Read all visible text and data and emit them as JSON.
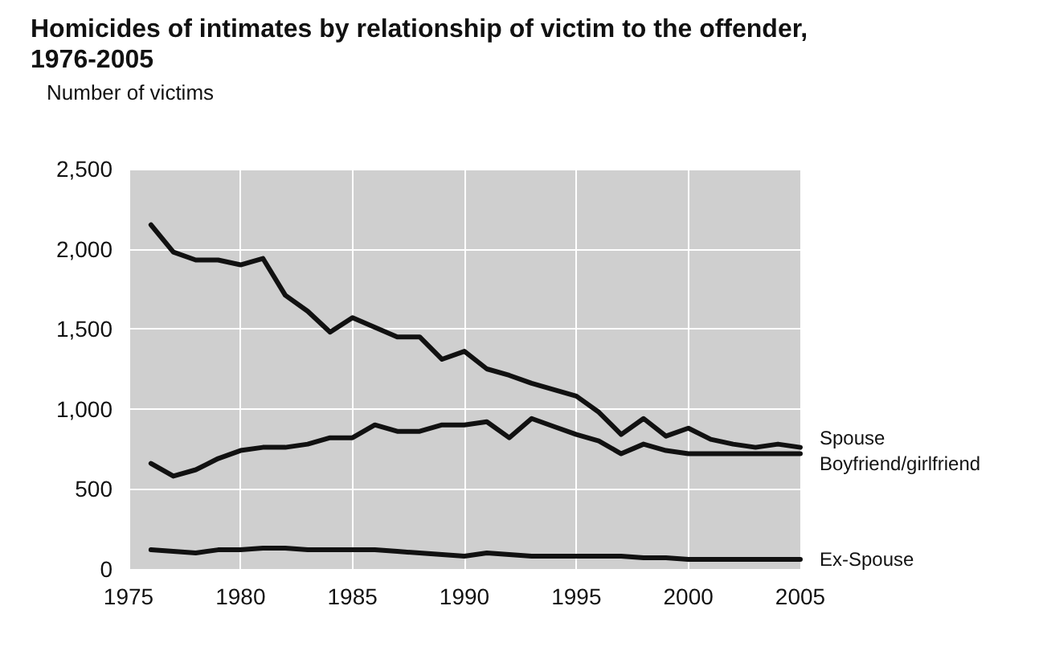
{
  "chart_data": {
    "type": "line",
    "title": "Homicides of intimates by relationship of victim to the offender, 1976-2005",
    "ylabel": "Number of victims",
    "x": [
      1976,
      1977,
      1978,
      1979,
      1980,
      1981,
      1982,
      1983,
      1984,
      1985,
      1986,
      1987,
      1988,
      1989,
      1990,
      1991,
      1992,
      1993,
      1994,
      1995,
      1996,
      1997,
      1998,
      1999,
      2000,
      2001,
      2002,
      2003,
      2004,
      2005
    ],
    "series": [
      {
        "name": "Spouse",
        "color": "#111111",
        "values": [
          2150,
          1980,
          1930,
          1930,
          1900,
          1940,
          1710,
          1610,
          1480,
          1570,
          1510,
          1450,
          1450,
          1310,
          1360,
          1250,
          1210,
          1160,
          1120,
          1080,
          980,
          840,
          940,
          830,
          880,
          810,
          780,
          760,
          780,
          760
        ]
      },
      {
        "name": "Boyfriend/girlfriend",
        "color": "#111111",
        "values": [
          660,
          580,
          620,
          690,
          740,
          760,
          760,
          780,
          820,
          820,
          900,
          860,
          860,
          900,
          900,
          920,
          820,
          940,
          890,
          840,
          800,
          720,
          780,
          740,
          720,
          720,
          720,
          720,
          720,
          720
        ]
      },
      {
        "name": "Ex-Spouse",
        "color": "#111111",
        "values": [
          120,
          110,
          100,
          120,
          120,
          130,
          130,
          120,
          120,
          120,
          120,
          110,
          100,
          90,
          80,
          100,
          90,
          80,
          80,
          80,
          80,
          80,
          70,
          70,
          60,
          60,
          60,
          60,
          60,
          60
        ]
      }
    ],
    "xlim": [
      1975,
      2005
    ],
    "xticks": [
      1975,
      1980,
      1985,
      1990,
      1995,
      2000,
      2005
    ],
    "ylim": [
      0,
      2500
    ],
    "yticks": [
      0,
      500,
      {
        "value": 1000,
        "label": "1,000"
      },
      {
        "value": 1500,
        "label": "1,500"
      },
      {
        "value": 2000,
        "label": "2,000"
      },
      {
        "value": 2500,
        "label": "2,500"
      }
    ],
    "grid": true,
    "legend": false,
    "marker": "none",
    "line_style": "solid"
  }
}
